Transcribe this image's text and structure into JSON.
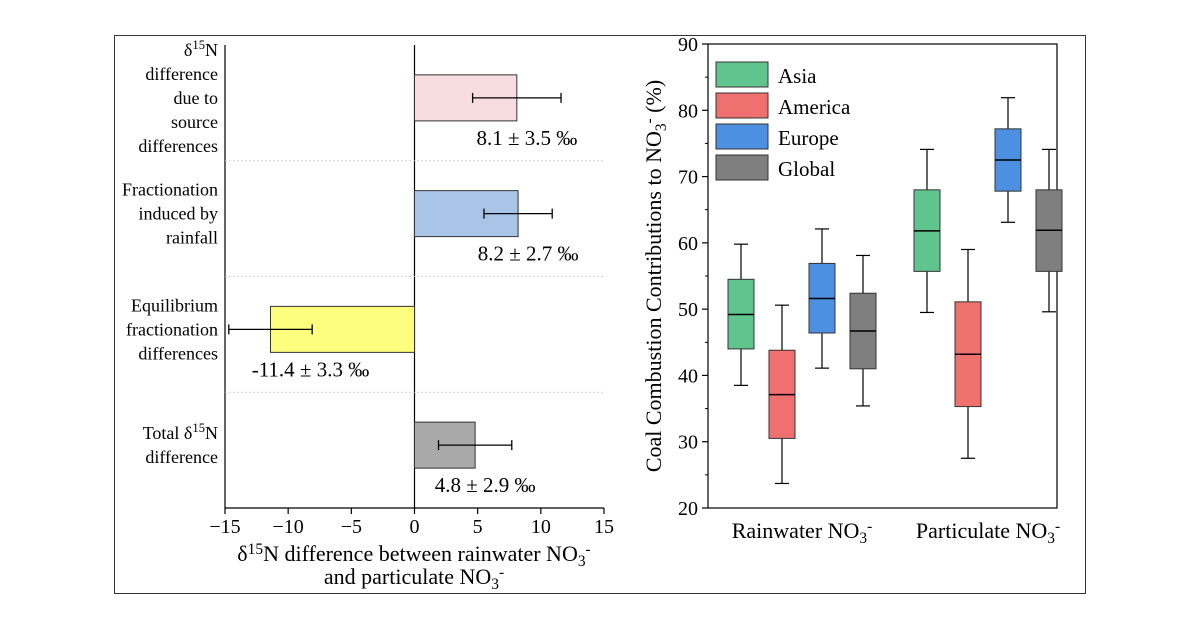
{
  "chart_data": [
    {
      "type": "bar",
      "orientation": "horizontal",
      "categories": [
        {
          "lines": [
            "δ{sup:15}N",
            "difference",
            "due to",
            "source",
            "differences"
          ]
        },
        {
          "lines": [
            "Fractionation",
            "induced by",
            "rainfall"
          ]
        },
        {
          "lines": [
            "Equilibrium",
            "fractionation",
            "differences"
          ]
        },
        {
          "lines": [
            "Total δ{sup:15}N",
            "difference"
          ]
        }
      ],
      "values": [
        8.1,
        8.2,
        -11.4,
        4.8
      ],
      "errors": [
        3.5,
        2.7,
        3.3,
        2.9
      ],
      "data_labels": [
        "8.1 ± 3.5 ‰",
        "8.2 ± 2.7 ‰",
        "-11.4 ± 3.3 ‰",
        "4.8 ± 2.9 ‰"
      ],
      "colors": [
        "#f7dde0",
        "#a8c4e6",
        "#fdfd7e",
        "#a9a9a9"
      ],
      "xlim": [
        -15,
        15
      ],
      "x_ticks": [
        -15,
        -10,
        -5,
        0,
        5,
        10,
        15
      ],
      "x_tick_labels": [
        "−15",
        "−10",
        "−5",
        "0",
        "5",
        "10",
        "15"
      ],
      "xlabel_lines": [
        "δ{sup:15}N difference between rainwater NO{sub:3}{sup:-}",
        "and particulate NO{sub:3}{sup:-}"
      ],
      "grid": "dotted horizontal separators"
    },
    {
      "type": "box",
      "categories": [
        "Rainwater NO{sub:3}{sup:-}",
        "Particulate NO{sub:3}{sup:-}"
      ],
      "ylabel": "Coal Combustion Contributions to NO{sub:3}{sup:-} (%)",
      "ylim": [
        20,
        90
      ],
      "y_ticks": [
        20,
        30,
        40,
        50,
        60,
        70,
        80,
        90
      ],
      "legend": "top-left",
      "series": [
        {
          "name": "Asia",
          "color": "#5fc48d",
          "boxes": [
            {
              "min": 38.5,
              "q1": 44,
              "median": 49.2,
              "q3": 54.5,
              "max": 59.8
            },
            {
              "min": 49.5,
              "q1": 55.7,
              "median": 61.8,
              "q3": 68,
              "max": 74.1
            }
          ]
        },
        {
          "name": "America",
          "color": "#f07070",
          "boxes": [
            {
              "min": 23.7,
              "q1": 30.5,
              "median": 37.1,
              "q3": 43.8,
              "max": 50.6
            },
            {
              "min": 27.5,
              "q1": 35.3,
              "median": 43.2,
              "q3": 51.1,
              "max": 59
            }
          ]
        },
        {
          "name": "Europe",
          "color": "#4d8fe0",
          "boxes": [
            {
              "min": 41.1,
              "q1": 46.4,
              "median": 51.6,
              "q3": 56.9,
              "max": 62.1
            },
            {
              "min": 63.1,
              "q1": 67.8,
              "median": 72.5,
              "q3": 77.2,
              "max": 81.9
            }
          ]
        },
        {
          "name": "Global",
          "color": "#7f7f7f",
          "boxes": [
            {
              "min": 35.4,
              "q1": 41,
              "median": 46.7,
              "q3": 52.4,
              "max": 58.1
            },
            {
              "min": 49.6,
              "q1": 55.7,
              "median": 61.9,
              "q3": 68,
              "max": 74.1
            }
          ]
        }
      ]
    }
  ]
}
